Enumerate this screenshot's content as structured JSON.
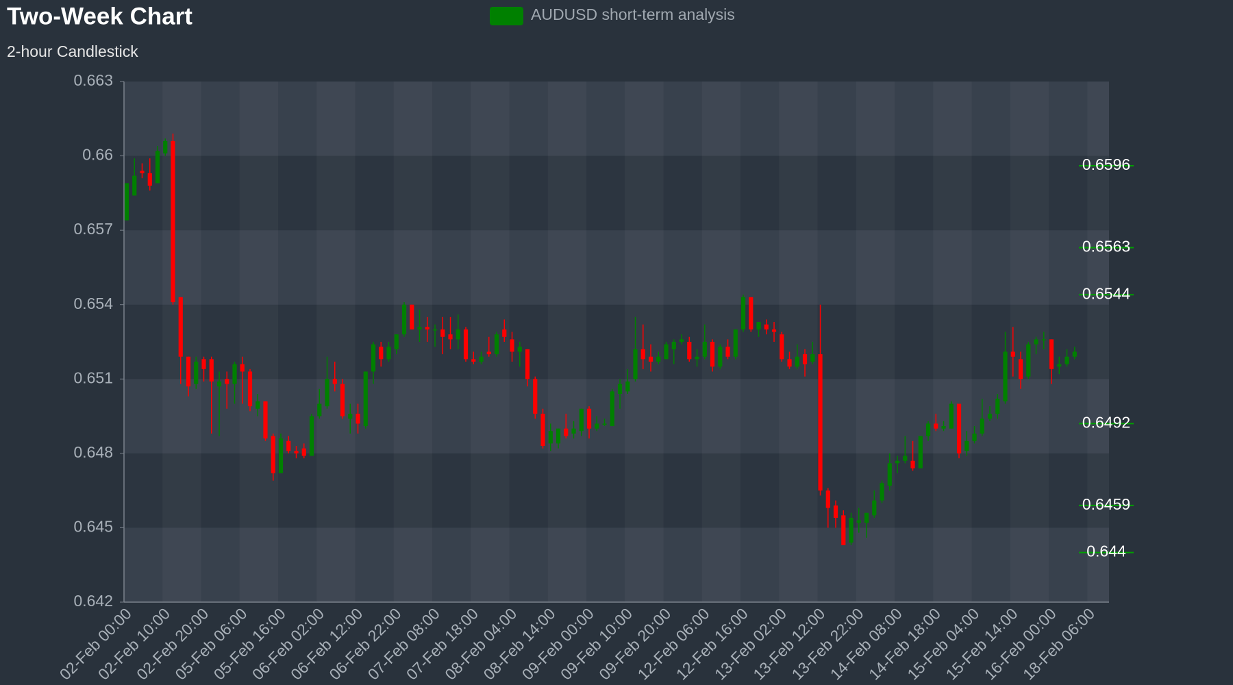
{
  "chart_data": {
    "type": "candlestick",
    "title": "Two-Week Chart",
    "subtitle": "2-hour Candlestick",
    "categories": [
      "02-Feb 00:00",
      null,
      null,
      null,
      null,
      "02-Feb 10:00",
      null,
      null,
      null,
      null,
      "02-Feb 20:00",
      null,
      null,
      null,
      null,
      "05-Feb 06:00",
      null,
      null,
      null,
      null,
      "05-Feb 16:00",
      null,
      null,
      null,
      null,
      "06-Feb 02:00",
      null,
      null,
      null,
      null,
      "06-Feb 12:00",
      null,
      null,
      null,
      null,
      "06-Feb 22:00",
      null,
      null,
      null,
      null,
      "07-Feb 08:00",
      null,
      null,
      null,
      null,
      "07-Feb 18:00",
      null,
      null,
      null,
      null,
      "08-Feb 04:00",
      null,
      null,
      null,
      null,
      "08-Feb 14:00",
      null,
      null,
      null,
      null,
      "09-Feb 00:00",
      null,
      null,
      null,
      null,
      "09-Feb 10:00",
      null,
      null,
      null,
      null,
      "09-Feb 20:00",
      null,
      null,
      null,
      null,
      "12-Feb 06:00",
      null,
      null,
      null,
      null,
      "12-Feb 16:00",
      null,
      null,
      null,
      null,
      "13-Feb 02:00",
      null,
      null,
      null,
      null,
      "13-Feb 12:00",
      null,
      null,
      null,
      null,
      "13-Feb 22:00",
      null,
      null,
      null,
      null,
      "14-Feb 08:00",
      null,
      null,
      null,
      null,
      "14-Feb 18:00",
      null,
      null,
      null,
      null,
      "15-Feb 04:00",
      null,
      null,
      null,
      null,
      "15-Feb 14:00",
      null,
      null,
      null,
      null,
      "16-Feb 00:00",
      null,
      null,
      null,
      null,
      "18-Feb 06:00"
    ],
    "series": [
      {
        "name": "AUDUSD short-term analysis",
        "color": "#008000",
        "up_color": "#008000",
        "down_color": "#ff0000",
        "open": [
          0.6574,
          0.6584,
          0.6594,
          0.6593,
          0.6589,
          0.6601,
          0.6606,
          0.6543,
          0.6519,
          0.6508,
          0.6518,
          0.6518,
          0.6507,
          0.651,
          0.6508,
          0.6516,
          0.6513,
          0.6498,
          0.6501,
          0.6487,
          0.6472,
          0.6485,
          0.6481,
          0.6482,
          0.6479,
          0.6495,
          0.6499,
          0.651,
          0.6508,
          0.6494,
          0.6496,
          0.6491,
          0.6513,
          0.6523,
          0.6518,
          0.6522,
          0.6528,
          0.654,
          0.653,
          0.6531,
          0.653,
          0.653,
          0.6528,
          0.6526,
          0.653,
          0.6518,
          0.6517,
          0.6521,
          0.652,
          0.653,
          0.6526,
          0.6521,
          0.6522,
          0.651,
          0.6496,
          0.6484,
          0.6484,
          0.649,
          0.6488,
          0.6489,
          0.6498,
          0.649,
          0.6492,
          0.6491,
          0.6504,
          0.6505,
          0.651,
          0.6522,
          0.6519,
          0.6517,
          0.6518,
          0.6522,
          0.6525,
          0.6525,
          0.6518,
          0.6519,
          0.6525,
          0.6515,
          0.6523,
          0.6519,
          0.653,
          0.6543,
          0.653,
          0.6532,
          0.653,
          0.6528,
          0.6518,
          0.6515,
          0.652,
          0.6517,
          0.652,
          0.6465,
          0.6459,
          0.6455,
          0.6444,
          0.6452,
          0.6452,
          0.6455,
          0.6461,
          0.6467,
          0.6476,
          0.6477,
          0.6477,
          0.6474,
          0.6487,
          0.6492,
          0.649,
          0.649,
          0.65,
          0.6481,
          0.6485,
          0.6488,
          0.6494,
          0.6496,
          0.6501,
          0.6521,
          0.6518,
          0.6511,
          0.6524,
          0.6526,
          0.6526,
          0.6515,
          0.6516,
          0.6519,
          null,
          null
        ],
        "high": [
          0.6589,
          0.6599,
          0.6597,
          0.6599,
          0.6604,
          0.6607,
          0.6609,
          0.6543,
          0.6519,
          0.6519,
          0.6519,
          0.6519,
          0.6513,
          0.6513,
          0.6517,
          0.6519,
          0.6514,
          0.6504,
          0.6501,
          0.6488,
          0.6488,
          0.6487,
          0.6483,
          0.6484,
          0.6496,
          0.6506,
          0.6519,
          0.6517,
          0.651,
          0.65,
          0.65,
          0.6513,
          0.6525,
          0.6525,
          0.6525,
          0.6528,
          0.6541,
          0.654,
          0.6538,
          0.6535,
          0.6532,
          0.6535,
          0.6535,
          0.6536,
          0.6531,
          0.6521,
          0.6521,
          0.6527,
          0.6529,
          0.6534,
          0.6529,
          0.6525,
          0.6522,
          0.6511,
          0.6498,
          0.6492,
          0.649,
          0.6496,
          0.6493,
          0.6498,
          0.6499,
          0.6495,
          0.6494,
          0.6506,
          0.651,
          0.6514,
          0.6535,
          0.6532,
          0.6524,
          0.6521,
          0.6525,
          0.6526,
          0.6528,
          0.6527,
          0.6522,
          0.6532,
          0.6526,
          0.6524,
          0.6526,
          0.653,
          0.6544,
          0.6543,
          0.6533,
          0.6534,
          0.6533,
          0.6529,
          0.6521,
          0.6524,
          0.6522,
          0.6525,
          0.654,
          0.6466,
          0.6461,
          0.6457,
          0.6456,
          0.6458,
          0.6456,
          0.6465,
          0.6469,
          0.648,
          0.6479,
          0.6487,
          0.6485,
          0.6487,
          0.6493,
          0.6496,
          0.6493,
          0.6501,
          0.65,
          0.6489,
          0.6491,
          0.6502,
          0.6499,
          0.6504,
          0.6529,
          0.6531,
          0.6521,
          0.6525,
          0.6527,
          0.6529,
          0.6526,
          0.6519,
          0.6522,
          0.6523,
          null,
          null
        ],
        "low": [
          0.6574,
          0.6584,
          0.6591,
          0.6586,
          0.6589,
          0.66,
          0.654,
          0.6508,
          0.6503,
          0.6506,
          0.6509,
          0.6488,
          0.6487,
          0.6498,
          0.65,
          0.65,
          0.6497,
          0.6495,
          0.6485,
          0.6469,
          0.6472,
          0.648,
          0.6478,
          0.6478,
          0.6479,
          0.6494,
          0.6498,
          0.6505,
          0.6494,
          0.6488,
          0.6488,
          0.649,
          0.6508,
          0.6515,
          0.6517,
          0.652,
          0.6527,
          0.653,
          0.6525,
          0.6525,
          0.6523,
          0.652,
          0.6522,
          0.6522,
          0.6517,
          0.6516,
          0.6516,
          0.6519,
          0.6519,
          0.6525,
          0.6517,
          0.6515,
          0.6507,
          0.6494,
          0.6482,
          0.6481,
          0.6482,
          0.6486,
          0.6486,
          0.6487,
          0.6486,
          0.6489,
          0.6491,
          0.6491,
          0.6498,
          0.6504,
          0.6509,
          0.6514,
          0.6513,
          0.6516,
          0.6518,
          0.6516,
          0.6524,
          0.6517,
          0.6515,
          0.6518,
          0.6513,
          0.6514,
          0.6518,
          0.6518,
          0.6529,
          0.6529,
          0.6527,
          0.6528,
          0.6525,
          0.6517,
          0.6514,
          0.6514,
          0.6511,
          0.6516,
          0.6463,
          0.645,
          0.645,
          0.6443,
          0.6443,
          0.6448,
          0.6446,
          0.6454,
          0.646,
          0.6465,
          0.6472,
          0.6476,
          0.6473,
          0.6474,
          0.6485,
          0.6489,
          0.6489,
          0.649,
          0.6478,
          0.6479,
          0.6484,
          0.6487,
          0.6493,
          0.6494,
          0.65,
          0.6511,
          0.6506,
          0.651,
          0.652,
          0.6522,
          0.6508,
          0.6512,
          0.6515,
          0.6518,
          null,
          null
        ],
        "close": [
          0.6589,
          0.6592,
          0.6593,
          0.6588,
          0.6602,
          0.6606,
          0.6541,
          0.6519,
          0.6507,
          0.6517,
          0.6514,
          0.6509,
          0.6509,
          0.6508,
          0.6516,
          0.6513,
          0.6499,
          0.6501,
          0.6486,
          0.6472,
          0.6486,
          0.6481,
          0.648,
          0.6479,
          0.6495,
          0.65,
          0.651,
          0.6508,
          0.6495,
          0.6496,
          0.6492,
          0.6513,
          0.6524,
          0.6518,
          0.6523,
          0.6528,
          0.654,
          0.653,
          0.6531,
          0.653,
          0.653,
          0.6527,
          0.6526,
          0.653,
          0.6518,
          0.6517,
          0.6519,
          0.652,
          0.6528,
          0.6527,
          0.6521,
          0.6523,
          0.651,
          0.6496,
          0.6483,
          0.6489,
          0.649,
          0.6487,
          0.649,
          0.6498,
          0.649,
          0.6492,
          0.6492,
          0.6505,
          0.6508,
          0.6509,
          0.6522,
          0.6518,
          0.6517,
          0.6519,
          0.6524,
          0.6525,
          0.6526,
          0.6518,
          0.6519,
          0.6525,
          0.6515,
          0.6523,
          0.6519,
          0.653,
          0.6543,
          0.653,
          0.6533,
          0.653,
          0.6529,
          0.6518,
          0.6515,
          0.6519,
          0.6516,
          0.652,
          0.6465,
          0.6458,
          0.6454,
          0.6443,
          0.6454,
          0.6453,
          0.6456,
          0.6461,
          0.6468,
          0.6476,
          0.6477,
          0.6479,
          0.6474,
          0.6487,
          0.6492,
          0.649,
          0.6491,
          0.65,
          0.648,
          0.6485,
          0.6488,
          0.6494,
          0.6496,
          0.6502,
          0.6521,
          0.6519,
          0.651,
          0.6524,
          0.6526,
          0.6526,
          0.6514,
          0.6516,
          0.6519,
          0.6521,
          null,
          null
        ]
      }
    ],
    "ylim": [
      0.642,
      0.663
    ],
    "yticks": [
      0.642,
      0.645,
      0.648,
      0.651,
      0.654,
      0.657,
      0.66,
      0.663
    ],
    "levels": [
      0.6596,
      0.6563,
      0.6544,
      0.6492,
      0.6459,
      0.644
    ],
    "level_color": "#00a000"
  }
}
